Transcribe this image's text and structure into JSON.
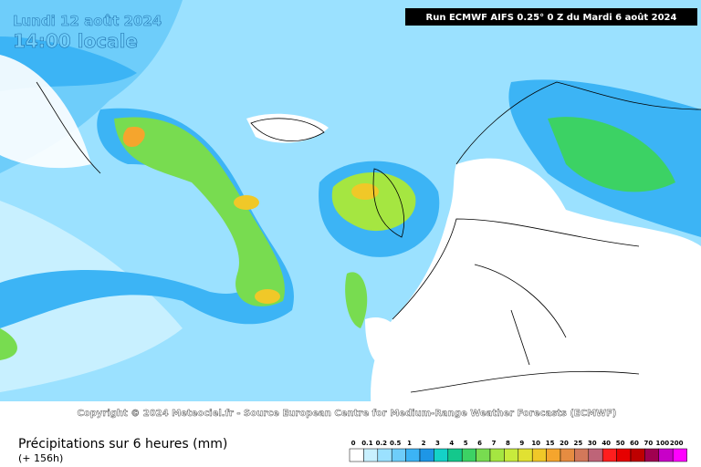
{
  "header": {
    "date": "Lundi 12 août 2024",
    "time": "14:00 locale",
    "run": "Run ECMWF AIFS 0.25° 0 Z du Mardi 6 août 2024"
  },
  "copyright": "Copyright © 2024 Meteociel.fr - Source European Centre for Medium-Range Weather Forecasts (ECMWF)",
  "footer": {
    "title": "Précipitations sur 6 heures (mm)",
    "lead": "(+ 156h)"
  },
  "legend": {
    "labels": [
      "0",
      "0.1",
      "0.2",
      "0.5",
      "1",
      "2",
      "3",
      "4",
      "5",
      "6",
      "7",
      "8",
      "9",
      "10",
      "15",
      "20",
      "25",
      "30",
      "40",
      "50",
      "60",
      "70",
      "100",
      "200"
    ],
    "colors": [
      "#ffffff",
      "#c8f0ff",
      "#9be1ff",
      "#6ecdfa",
      "#3cb4f5",
      "#1e96e6",
      "#14d2c8",
      "#14c88c",
      "#3cd264",
      "#78dc50",
      "#a5e641",
      "#c8eb3c",
      "#e1e132",
      "#f0c828",
      "#f5a52d",
      "#e68c41",
      "#d2785a",
      "#be6478",
      "#ff1e1e",
      "#e60000",
      "#be0000",
      "#a00050",
      "#c800c8",
      "#ff00ff"
    ]
  }
}
